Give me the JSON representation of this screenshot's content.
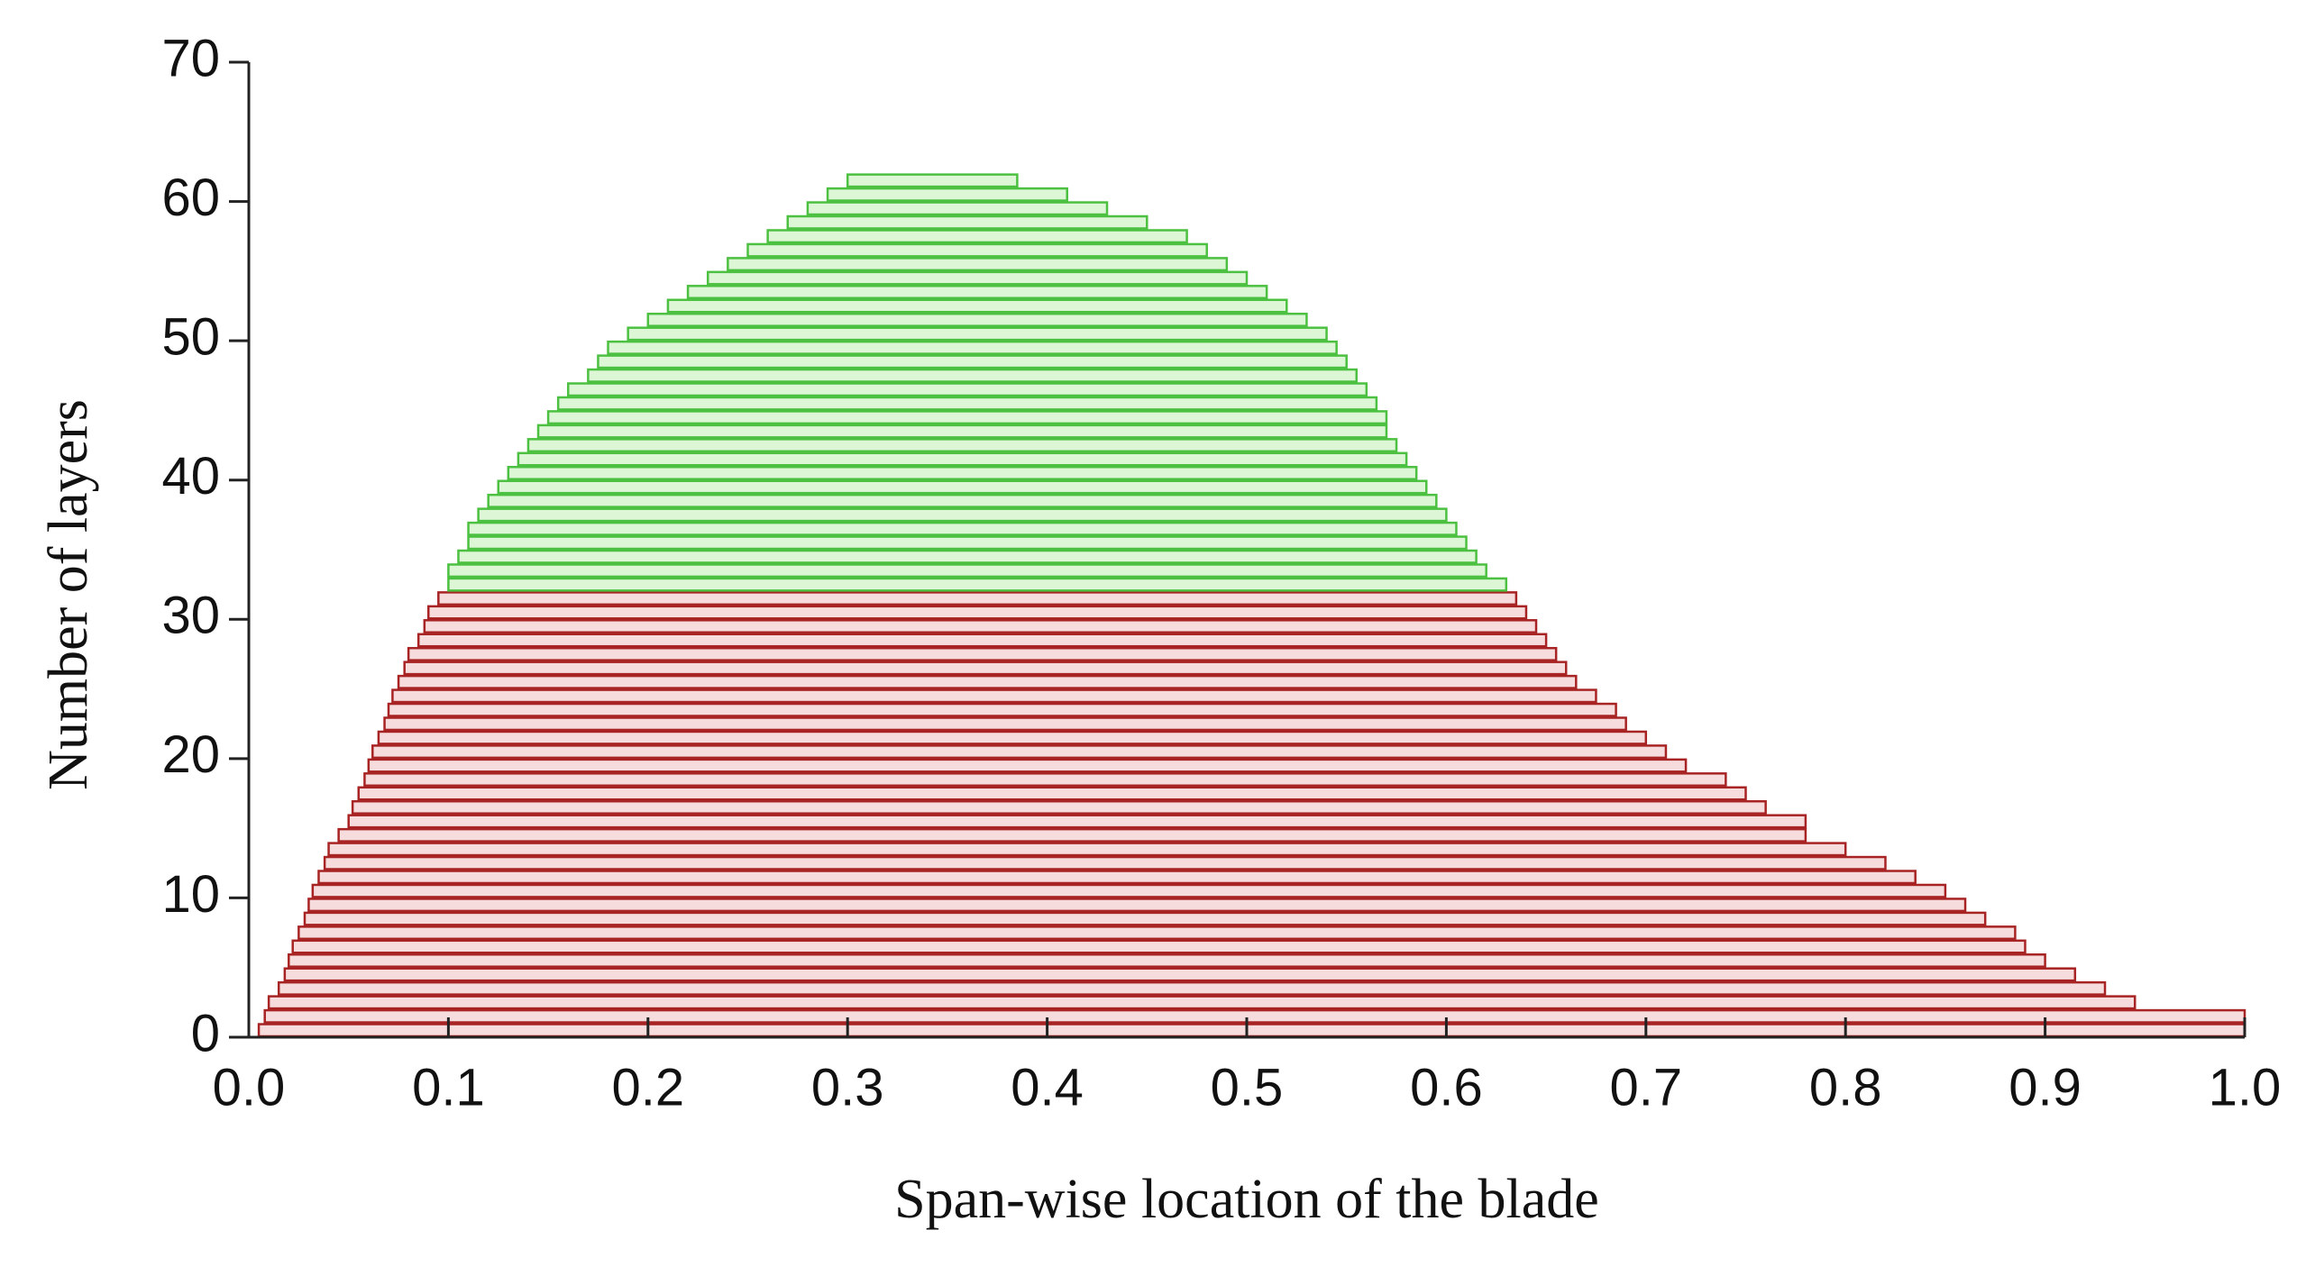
{
  "chart_data": {
    "type": "layer-bar",
    "xlabel": "Span-wise location of the blade",
    "ylabel": "Number of layers",
    "xlim": [
      0,
      1
    ],
    "ylim": [
      0,
      70
    ],
    "xticks": [
      {
        "value": 0,
        "label": "0.0"
      },
      0.1,
      0.2,
      0.3,
      0.4,
      0.5,
      0.6,
      0.7,
      0.8,
      0.9,
      {
        "value": 1,
        "label": "1.0"
      }
    ],
    "yticks": [
      0,
      10,
      20,
      30,
      40,
      50,
      60,
      70
    ],
    "series": [
      {
        "color": "#a82424",
        "fill": "#f6dcdc",
        "layers": [
          1,
          2,
          3,
          4,
          5,
          6,
          7,
          8,
          9,
          10,
          11,
          12,
          13,
          14,
          15,
          16,
          17,
          18,
          19,
          20,
          21,
          22,
          23,
          24,
          25,
          26,
          27,
          28,
          29,
          30,
          31,
          32
        ],
        "start": [
          0.005,
          0.008,
          0.01,
          0.015,
          0.018,
          0.02,
          0.022,
          0.025,
          0.028,
          0.03,
          0.032,
          0.035,
          0.038,
          0.04,
          0.045,
          0.05,
          0.052,
          0.055,
          0.058,
          0.06,
          0.062,
          0.065,
          0.068,
          0.07,
          0.072,
          0.075,
          0.078,
          0.08,
          0.085,
          0.088,
          0.09,
          0.095
        ],
        "end": [
          1.0,
          1.0,
          0.945,
          0.93,
          0.915,
          0.9,
          0.89,
          0.885,
          0.87,
          0.86,
          0.85,
          0.835,
          0.82,
          0.8,
          0.78,
          0.78,
          0.76,
          0.75,
          0.74,
          0.72,
          0.71,
          0.7,
          0.69,
          0.685,
          0.675,
          0.665,
          0.66,
          0.655,
          0.65,
          0.645,
          0.64,
          0.635
        ]
      },
      {
        "color": "#4cc040",
        "fill": "#dcf6d6",
        "layers": [
          33,
          34,
          35,
          36,
          37,
          38,
          39,
          40,
          41,
          42,
          43,
          44,
          45,
          46,
          47,
          48,
          49,
          50,
          51,
          52,
          53,
          54,
          55,
          56,
          57,
          58,
          59,
          60,
          61,
          62
        ],
        "start": [
          0.1,
          0.1,
          0.105,
          0.11,
          0.11,
          0.115,
          0.12,
          0.125,
          0.13,
          0.135,
          0.14,
          0.145,
          0.15,
          0.155,
          0.16,
          0.17,
          0.175,
          0.18,
          0.19,
          0.2,
          0.21,
          0.22,
          0.23,
          0.24,
          0.25,
          0.26,
          0.27,
          0.28,
          0.29,
          0.3
        ],
        "end": [
          0.63,
          0.62,
          0.615,
          0.61,
          0.605,
          0.6,
          0.595,
          0.59,
          0.585,
          0.58,
          0.575,
          0.57,
          0.57,
          0.565,
          0.56,
          0.555,
          0.55,
          0.545,
          0.54,
          0.53,
          0.52,
          0.51,
          0.5,
          0.49,
          0.48,
          0.47,
          0.45,
          0.43,
          0.41,
          0.385
        ]
      }
    ]
  }
}
